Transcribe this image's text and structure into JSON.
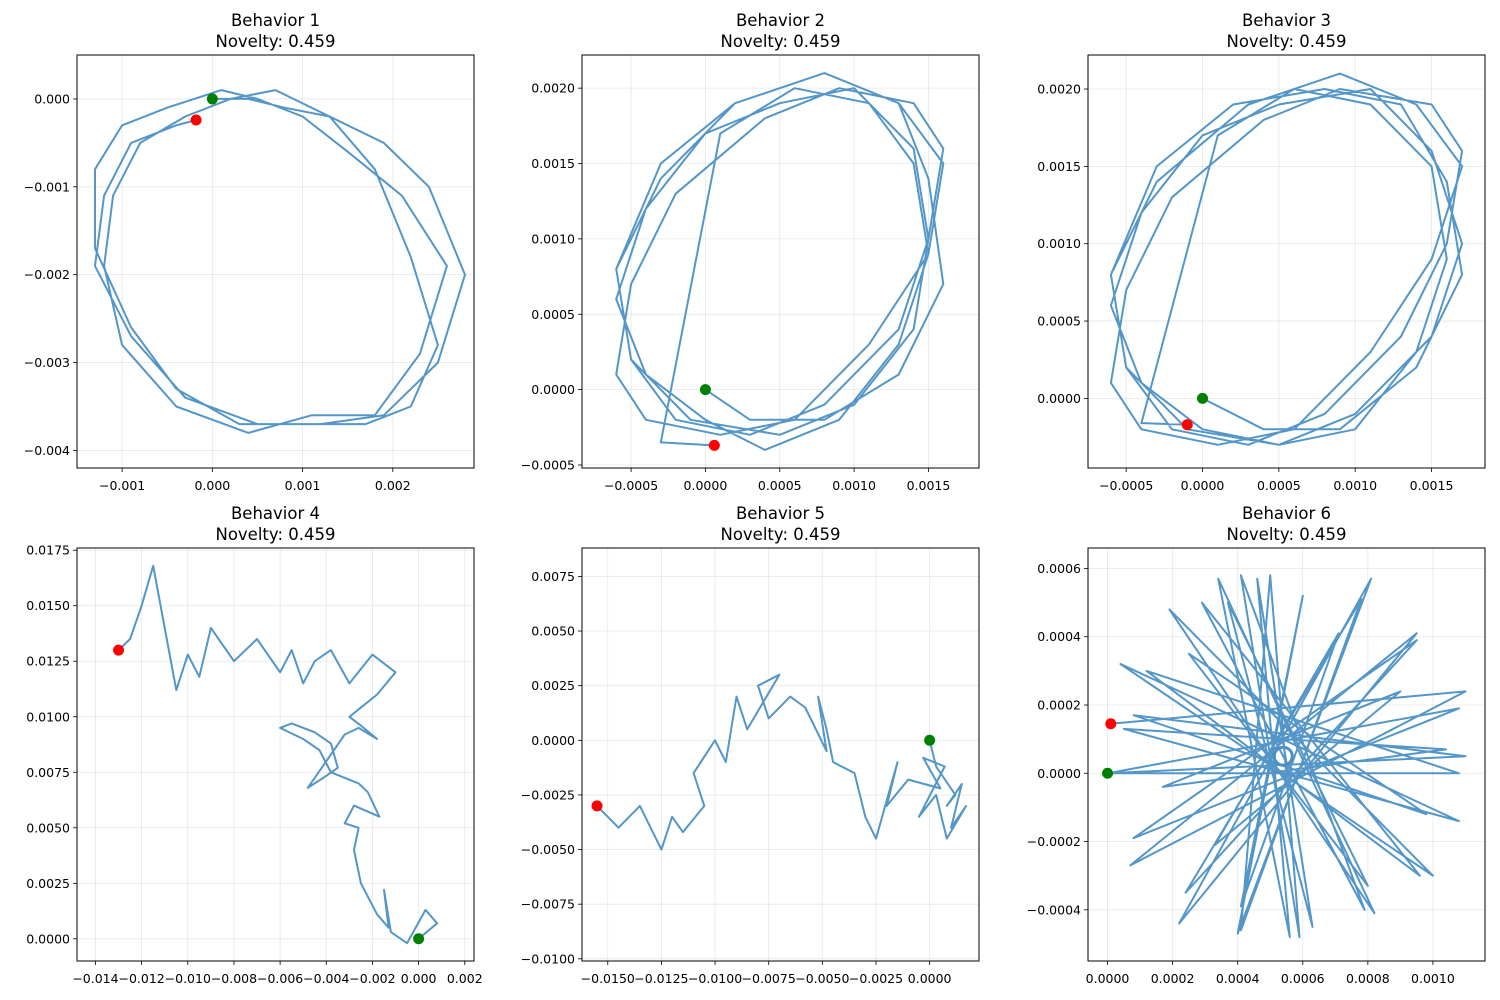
{
  "chart_data": [
    {
      "type": "line",
      "title": "Behavior 1",
      "subtitle": "Novelty: 0.459",
      "xlim": [
        -0.0015,
        0.0029
      ],
      "ylim": [
        -0.0042,
        0.0005
      ],
      "xticks": [
        -0.001,
        0.0,
        0.001,
        0.002
      ],
      "xtick_labels": [
        "−0.001",
        "0.000",
        "0.001",
        "0.002"
      ],
      "yticks": [
        0.0,
        -0.001,
        -0.002,
        -0.003,
        -0.004
      ],
      "ytick_labels": [
        "0.000",
        "−0.001",
        "−0.002",
        "−0.003",
        "−0.004"
      ],
      "grid": true,
      "colors": {
        "line": "#4a90c4",
        "start": "#008000",
        "end": "#ff0000"
      },
      "start": [
        0.0,
        0.0
      ],
      "end": [
        -0.00018,
        -0.00024
      ],
      "series": [
        {
          "x": [
            0.0,
            0.0004,
            0.0008,
            0.0013,
            0.0018,
            0.0022,
            0.0025,
            0.0022,
            0.0017,
            0.001,
            0.0003,
            -0.0004,
            -0.0009,
            -0.0013,
            -0.0013,
            -0.001,
            -0.0005,
            0.0001,
            0.0005,
            0.001,
            0.0015,
            0.0021,
            0.0026,
            0.0023,
            0.0018,
            0.0011,
            0.0004,
            -0.0004,
            -0.001,
            -0.0012,
            -0.0011,
            -0.0008,
            -0.0003,
            0.0002,
            0.0007,
            0.0013,
            0.0019,
            0.0024,
            0.0028,
            0.0025,
            0.0019,
            0.0012,
            0.0005,
            -0.0003,
            -0.0009,
            -0.0013,
            -0.0012,
            -0.0009,
            -0.0004,
            -0.00018
          ],
          "y": [
            0.0,
            0.0,
            -0.0001,
            -0.0002,
            -0.0008,
            -0.0018,
            -0.0028,
            -0.0035,
            -0.0037,
            -0.0037,
            -0.0037,
            -0.0033,
            -0.0026,
            -0.0017,
            -0.0008,
            -0.0003,
            -0.0001,
            0.0001,
            0.0,
            -0.0002,
            -0.0006,
            -0.0011,
            -0.0019,
            -0.0029,
            -0.0036,
            -0.0036,
            -0.0038,
            -0.0035,
            -0.0028,
            -0.0019,
            -0.0011,
            -0.0005,
            -0.0002,
            0.0,
            0.0001,
            -0.0002,
            -0.0005,
            -0.001,
            -0.002,
            -0.003,
            -0.0036,
            -0.0037,
            -0.0037,
            -0.0034,
            -0.0027,
            -0.0019,
            -0.0011,
            -0.0005,
            -0.0003,
            -0.00024
          ]
        }
      ]
    },
    {
      "type": "line",
      "title": "Behavior 2",
      "subtitle": "Novelty: 0.459",
      "xlim": [
        -0.00083,
        0.00184
      ],
      "ylim": [
        -0.00052,
        0.00222
      ],
      "xticks": [
        -0.0005,
        0.0,
        0.0005,
        0.001,
        0.0015
      ],
      "xtick_labels": [
        "−0.0005",
        "0.0000",
        "0.0005",
        "0.0010",
        "0.0015"
      ],
      "yticks": [
        0.002,
        0.0015,
        0.001,
        0.0005,
        0.0,
        -0.0005
      ],
      "ytick_labels": [
        "0.0020",
        "0.0015",
        "0.0010",
        "0.0005",
        "0.0000",
        "−0.0005"
      ],
      "grid": true,
      "colors": {
        "line": "#4a90c4",
        "start": "#008000",
        "end": "#ff0000"
      },
      "start": [
        0.0,
        0.0
      ],
      "end": [
        6e-05,
        -0.00037
      ],
      "series": [
        {
          "x": [
            0.0,
            0.0003,
            0.0008,
            0.0013,
            0.0016,
            0.0015,
            0.0013,
            0.0008,
            0.0002,
            -0.0003,
            -0.0006,
            -0.0005,
            -0.0002,
            0.0003,
            0.0008,
            0.0013,
            0.0015,
            0.0016,
            0.0014,
            0.0009,
            0.0004,
            -0.0002,
            -0.0005,
            -0.0006,
            -0.0004,
            0.0001,
            0.0006,
            0.0011,
            0.0015,
            0.0016,
            0.0013,
            0.0008,
            0.0002,
            -0.0003,
            -0.0006,
            -0.0005,
            -0.0001,
            0.0005,
            0.001,
            0.0014,
            0.0015,
            0.0014,
            0.001,
            0.0005,
            0.0,
            -0.0004,
            -0.0006,
            -0.0004,
            0.0,
            0.0004,
            0.0009,
            0.0013,
            0.0015,
            0.0014,
            0.0011,
            0.0006,
            0.0001,
            -0.0003,
            6e-05
          ],
          "y": [
            0.0,
            -0.0002,
            -0.0002,
            0.0001,
            0.0007,
            0.0014,
            0.0019,
            0.0021,
            0.0019,
            0.0015,
            0.0008,
            0.0002,
            -0.0002,
            -0.0003,
            -0.0001,
            0.0004,
            0.001,
            0.0016,
            0.0019,
            0.002,
            0.0018,
            0.0013,
            0.0007,
            0.0001,
            -0.0002,
            -0.0003,
            -0.0002,
            0.0003,
            0.0009,
            0.0015,
            0.0019,
            0.0021,
            0.0019,
            0.0014,
            0.0008,
            0.0002,
            -0.0002,
            -0.0003,
            -0.0001,
            0.0004,
            0.001,
            0.0016,
            0.002,
            0.0019,
            0.0017,
            0.0012,
            0.0006,
            0.0001,
            -0.0002,
            -0.0004,
            -0.0002,
            0.0003,
            0.0009,
            0.0015,
            0.0019,
            0.002,
            0.0017,
            -0.00035,
            -0.00037
          ]
        }
      ]
    },
    {
      "type": "line",
      "title": "Behavior 3",
      "subtitle": "Novelty: 0.459",
      "xlim": [
        -0.00075,
        0.00185
      ],
      "ylim": [
        -0.00045,
        0.00222
      ],
      "xticks": [
        -0.0005,
        0.0,
        0.0005,
        0.001,
        0.0015
      ],
      "xtick_labels": [
        "−0.0005",
        "0.0000",
        "0.0005",
        "0.0010",
        "0.0015"
      ],
      "yticks": [
        0.002,
        0.0015,
        0.001,
        0.0005,
        0.0
      ],
      "ytick_labels": [
        "0.0020",
        "0.0015",
        "0.0010",
        "0.0005",
        "0.0000"
      ],
      "grid": true,
      "colors": {
        "line": "#4a90c4",
        "start": "#008000",
        "end": "#ff0000"
      },
      "start": [
        0.0,
        0.0
      ],
      "end": [
        -0.0001,
        -0.00017
      ],
      "series": [
        {
          "x": [
            0.0,
            0.0004,
            0.0009,
            0.0014,
            0.0017,
            0.0016,
            0.0013,
            0.0008,
            0.0002,
            -0.0003,
            -0.0006,
            -0.0005,
            -0.0002,
            0.0003,
            0.0008,
            0.0013,
            0.0016,
            0.0017,
            0.0015,
            0.0009,
            0.0004,
            -0.0002,
            -0.0005,
            -0.0006,
            -0.0004,
            0.0001,
            0.0006,
            0.0011,
            0.0015,
            0.0017,
            0.0014,
            0.0009,
            0.0003,
            -0.0003,
            -0.0006,
            -0.0005,
            -0.0001,
            0.0005,
            0.001,
            0.0015,
            0.0017,
            0.0015,
            0.0011,
            0.0005,
            0.0,
            -0.0004,
            -0.0006,
            -0.0004,
            0.0,
            0.0005,
            0.001,
            0.0014,
            0.0016,
            0.0015,
            0.0011,
            0.0006,
            0.0001,
            -0.0004,
            -0.0001
          ],
          "y": [
            0.0,
            -0.0002,
            -0.0002,
            0.0002,
            0.0008,
            0.0014,
            0.0019,
            0.002,
            0.0019,
            0.0015,
            0.0008,
            0.0002,
            -0.0002,
            -0.0003,
            -0.0001,
            0.0004,
            0.001,
            0.0016,
            0.0019,
            0.002,
            0.0018,
            0.0013,
            0.0007,
            0.0001,
            -0.0002,
            -0.0003,
            -0.0002,
            0.0003,
            0.0009,
            0.0015,
            0.0019,
            0.0021,
            0.0019,
            0.0014,
            0.0008,
            0.0002,
            -0.0002,
            -0.0003,
            -0.0001,
            0.0004,
            0.001,
            0.0016,
            0.002,
            0.0019,
            0.0017,
            0.0012,
            0.0006,
            0.0001,
            -0.0002,
            -0.0003,
            -0.0002,
            0.0003,
            0.0009,
            0.0015,
            0.0019,
            0.002,
            0.0017,
            -0.00016,
            -0.00017
          ]
        }
      ]
    },
    {
      "type": "line",
      "title": "Behavior 4",
      "subtitle": "Novelty: 0.459",
      "xlim": [
        -0.0148,
        0.0024
      ],
      "ylim": [
        -0.001,
        0.0176
      ],
      "xticks": [
        -0.014,
        -0.012,
        -0.01,
        -0.008,
        -0.006,
        -0.004,
        -0.002,
        0.0,
        0.002
      ],
      "xtick_labels": [
        "−0.014",
        "−0.012",
        "−0.010",
        "−0.008",
        "−0.006",
        "−0.004",
        "−0.002",
        "0.000",
        "0.002"
      ],
      "yticks": [
        0.0175,
        0.015,
        0.0125,
        0.01,
        0.0075,
        0.005,
        0.0025,
        0.0
      ],
      "ytick_labels": [
        "0.0175",
        "0.0150",
        "0.0125",
        "0.0100",
        "0.0075",
        "0.0050",
        "0.0025",
        "0.0000"
      ],
      "grid": true,
      "colors": {
        "line": "#4a90c4",
        "start": "#008000",
        "end": "#ff0000"
      },
      "start": [
        0.0,
        0.0
      ],
      "end": [
        -0.013,
        0.013
      ],
      "series": [
        {
          "x": [
            0.0,
            0.0008,
            0.0003,
            -0.0005,
            -0.0012,
            -0.0015,
            -0.0013,
            -0.0018,
            -0.0025,
            -0.0028,
            -0.0026,
            -0.0032,
            -0.0028,
            -0.0017,
            -0.0022,
            -0.0026,
            -0.0038,
            -0.0043,
            -0.005,
            -0.006,
            -0.0055,
            -0.0045,
            -0.0038,
            -0.0035,
            -0.0042,
            -0.0048,
            -0.004,
            -0.0032,
            -0.0026,
            -0.0018,
            -0.0025,
            -0.003,
            -0.0018,
            -0.001,
            -0.002,
            -0.003,
            -0.0038,
            -0.0045,
            -0.005,
            -0.0055,
            -0.006,
            -0.007,
            -0.008,
            -0.009,
            -0.0095,
            -0.01,
            -0.0105,
            -0.011,
            -0.0115,
            -0.012,
            -0.0125,
            -0.013
          ],
          "y": [
            0.0,
            0.0007,
            0.0013,
            -0.0002,
            0.0003,
            0.0022,
            0.0005,
            0.0011,
            0.0025,
            0.004,
            0.005,
            0.0052,
            0.006,
            0.0055,
            0.0066,
            0.007,
            0.0075,
            0.0085,
            0.009,
            0.0095,
            0.0097,
            0.0093,
            0.0088,
            0.0077,
            0.0072,
            0.0068,
            0.008,
            0.0092,
            0.0095,
            0.009,
            0.0096,
            0.01,
            0.011,
            0.012,
            0.0128,
            0.0115,
            0.013,
            0.0125,
            0.0115,
            0.013,
            0.012,
            0.0135,
            0.0125,
            0.014,
            0.0118,
            0.0128,
            0.0112,
            0.014,
            0.0168,
            0.015,
            0.0135,
            0.013
          ]
        }
      ]
    },
    {
      "type": "line",
      "title": "Behavior 5",
      "subtitle": "Novelty: 0.459",
      "xlim": [
        -0.0162,
        0.0023
      ],
      "ylim": [
        -0.0101,
        0.0088
      ],
      "xticks": [
        -0.015,
        -0.0125,
        -0.01,
        -0.0075,
        -0.005,
        -0.0025,
        0.0
      ],
      "xtick_labels": [
        "−0.0150",
        "−0.0125",
        "−0.0100",
        "−0.0075",
        "−0.0050",
        "−0.0025",
        "0.0000"
      ],
      "yticks": [
        0.0075,
        0.005,
        0.0025,
        0.0,
        -0.0025,
        -0.005,
        -0.0075,
        -0.01
      ],
      "ytick_labels": [
        "0.0075",
        "0.0050",
        "0.0025",
        "0.0000",
        "−0.0025",
        "−0.0050",
        "−0.0075",
        "−0.0100"
      ],
      "grid": true,
      "colors": {
        "line": "#4a90c4",
        "start": "#008000",
        "end": "#ff0000"
      },
      "start": [
        0.0,
        0.0
      ],
      "end": [
        -0.0155,
        -0.003
      ],
      "series": [
        {
          "x": [
            0.0,
            0.0003,
            0.0012,
            0.0008,
            0.0015,
            0.001,
            0.0017,
            0.0008,
            0.0003,
            -0.0005,
            0.0007,
            -0.0003,
            0.0005,
            -0.001,
            -0.002,
            -0.0015,
            -0.0025,
            -0.003,
            -0.0035,
            -0.0045,
            -0.0048,
            -0.0052,
            -0.0048,
            -0.0058,
            -0.0065,
            -0.0075,
            -0.008,
            -0.007,
            -0.0085,
            -0.009,
            -0.0095,
            -0.01,
            -0.011,
            -0.0105,
            -0.0115,
            -0.012,
            -0.0125,
            -0.0135,
            -0.0145,
            -0.0155
          ],
          "y": [
            0.0,
            -0.0012,
            -0.0025,
            -0.003,
            -0.002,
            -0.004,
            -0.003,
            -0.0045,
            -0.0025,
            -0.0035,
            -0.0012,
            -0.0008,
            -0.0022,
            -0.0018,
            -0.003,
            -0.001,
            -0.0045,
            -0.0035,
            -0.0015,
            -0.001,
            0.0005,
            0.002,
            -0.0005,
            0.0015,
            0.002,
            0.001,
            0.0025,
            0.003,
            0.0005,
            0.002,
            -0.001,
            0.0,
            -0.0015,
            -0.003,
            -0.0042,
            -0.0035,
            -0.005,
            -0.003,
            -0.004,
            -0.003
          ]
        }
      ]
    },
    {
      "type": "line",
      "title": "Behavior 6",
      "subtitle": "Novelty: 0.459",
      "xlim": [
        -6e-05,
        0.00116
      ],
      "ylim": [
        -0.00055,
        0.00066
      ],
      "xticks": [
        0.0,
        0.0002,
        0.0004,
        0.0006,
        0.0008,
        0.001
      ],
      "xtick_labels": [
        "0.0000",
        "0.0002",
        "0.0004",
        "0.0006",
        "0.0008",
        "0.0010"
      ],
      "yticks": [
        0.0006,
        0.0004,
        0.0002,
        0.0,
        -0.0002,
        -0.0004
      ],
      "ytick_labels": [
        "0.0006",
        "0.0004",
        "0.0002",
        "0.0000",
        "−0.0002",
        "−0.0004"
      ],
      "grid": true,
      "colors": {
        "line": "#4a90c4",
        "start": "#008000",
        "end": "#ff0000"
      },
      "start": [
        0.0,
        0.0
      ],
      "end": [
        1e-05,
        0.000145
      ],
      "center": [
        0.00054,
        5e-05
      ],
      "series": [
        {
          "x": [
            0.0,
            0.00108,
            0.00012,
            0.00096,
            0.00029,
            0.00079,
            0.00041,
            0.00059,
            0.0005,
            0.00041,
            0.00078,
            0.00024,
            0.00095,
            8e-05,
            0.00108,
            0.0,
            0.0011,
            8e-05,
            0.00098,
            0.00025,
            0.0008,
            0.00037,
            0.00063,
            0.00046,
            0.00056,
            0.00034,
            0.00082,
            0.00019,
            0.001,
            4e-05,
            0.00108,
            5e-05,
            0.00104,
            0.00017,
            0.0009,
            0.00033,
            0.00071,
            0.00041,
            0.0006,
            0.0004,
            0.00081,
            0.00022,
            0.00095,
            7e-05,
            0.0011,
            1e-05
          ],
          "y": [
            0.0,
            0.0,
            0.0003,
            -0.0003,
            0.0005,
            -0.0004,
            0.00058,
            -0.00048,
            0.00058,
            -0.00046,
            0.00051,
            -0.00035,
            0.00039,
            -0.00019,
            0.00019,
            0.0,
            5e-05,
            0.00017,
            -0.00012,
            0.00035,
            -0.00033,
            0.0005,
            -0.00045,
            0.00057,
            -0.00048,
            0.00057,
            -0.00041,
            0.00048,
            -0.0003,
            0.00032,
            -0.00014,
            0.00013,
            7e-05,
            -4e-05,
            0.00024,
            -0.00021,
            0.00041,
            -0.00039,
            0.00052,
            -0.00047,
            0.00057,
            -0.00044,
            0.00041,
            -0.00027,
            0.00024,
            0.000145
          ]
        }
      ]
    }
  ]
}
